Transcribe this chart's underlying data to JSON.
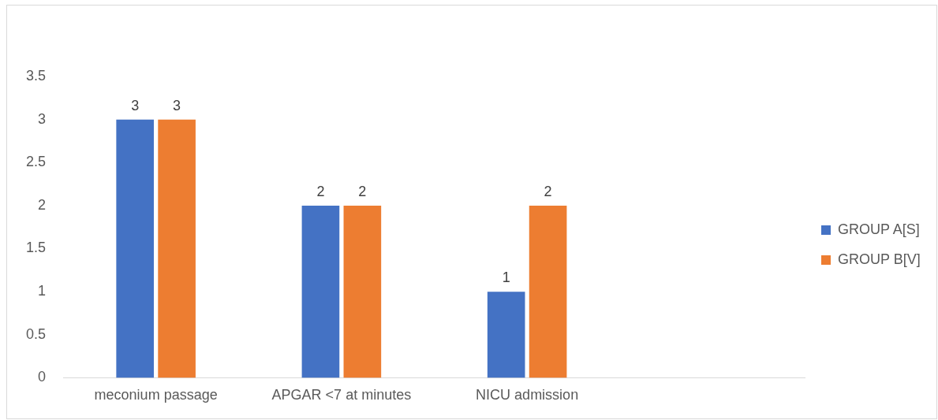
{
  "chart_data": {
    "type": "bar",
    "categories": [
      "meconium passage",
      "APGAR <7 at minutes",
      "NICU admission",
      null
    ],
    "series": [
      {
        "name": "GROUP A[S]",
        "color": "#4472c4",
        "values": [
          3,
          2,
          1,
          null
        ]
      },
      {
        "name": "GROUP B[V]",
        "color": "#ed7d31",
        "values": [
          3,
          2,
          2,
          null
        ]
      }
    ],
    "ylim": [
      0,
      3.5
    ],
    "yticks": [
      0,
      0.5,
      1,
      1.5,
      2,
      2.5,
      3,
      3.5
    ],
    "grid": false,
    "legend": "right",
    "data_labels": true
  }
}
